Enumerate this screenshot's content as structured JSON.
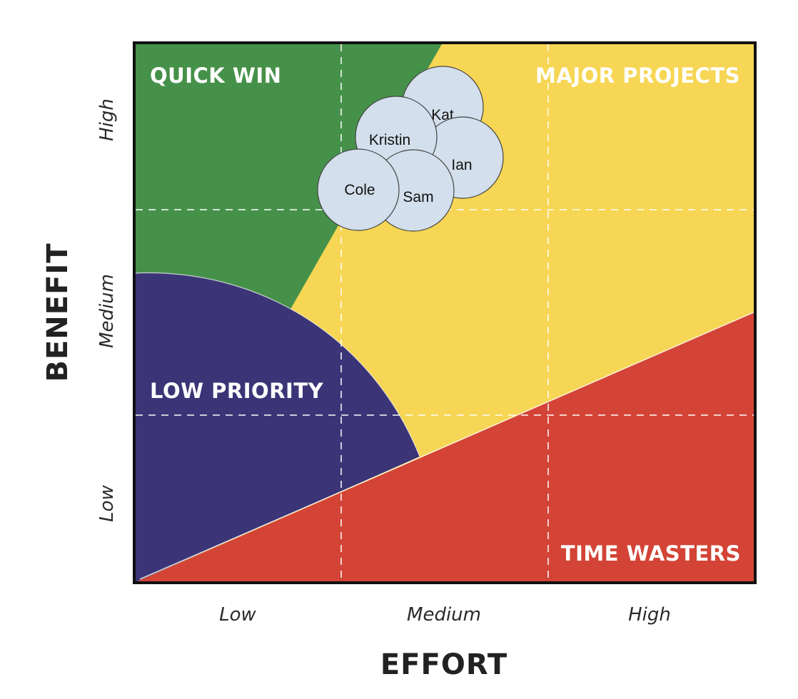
{
  "zones": {
    "quick_win": {
      "label": "QUICK WIN",
      "color": "#46914a"
    },
    "major_projects": {
      "label": "MAJOR PROJECTS",
      "color": "#f6d654"
    },
    "low_priority": {
      "label": "LOW PRIORITY",
      "color": "#3b3477"
    },
    "time_wasters": {
      "label": "TIME WASTERS",
      "color": "#d34436"
    }
  },
  "axes": {
    "x_title": "EFFORT",
    "y_title": "BENEFIT",
    "x_ticks": [
      "Low",
      "Medium",
      "High"
    ],
    "y_ticks": [
      "Low",
      "Medium",
      "High"
    ]
  },
  "bubbles": [
    "Kat",
    "Ian",
    "Kristin",
    "Sam",
    "Cole"
  ],
  "colors": {
    "bubble_fill": "#d3dfec",
    "frame": "#111111"
  }
}
